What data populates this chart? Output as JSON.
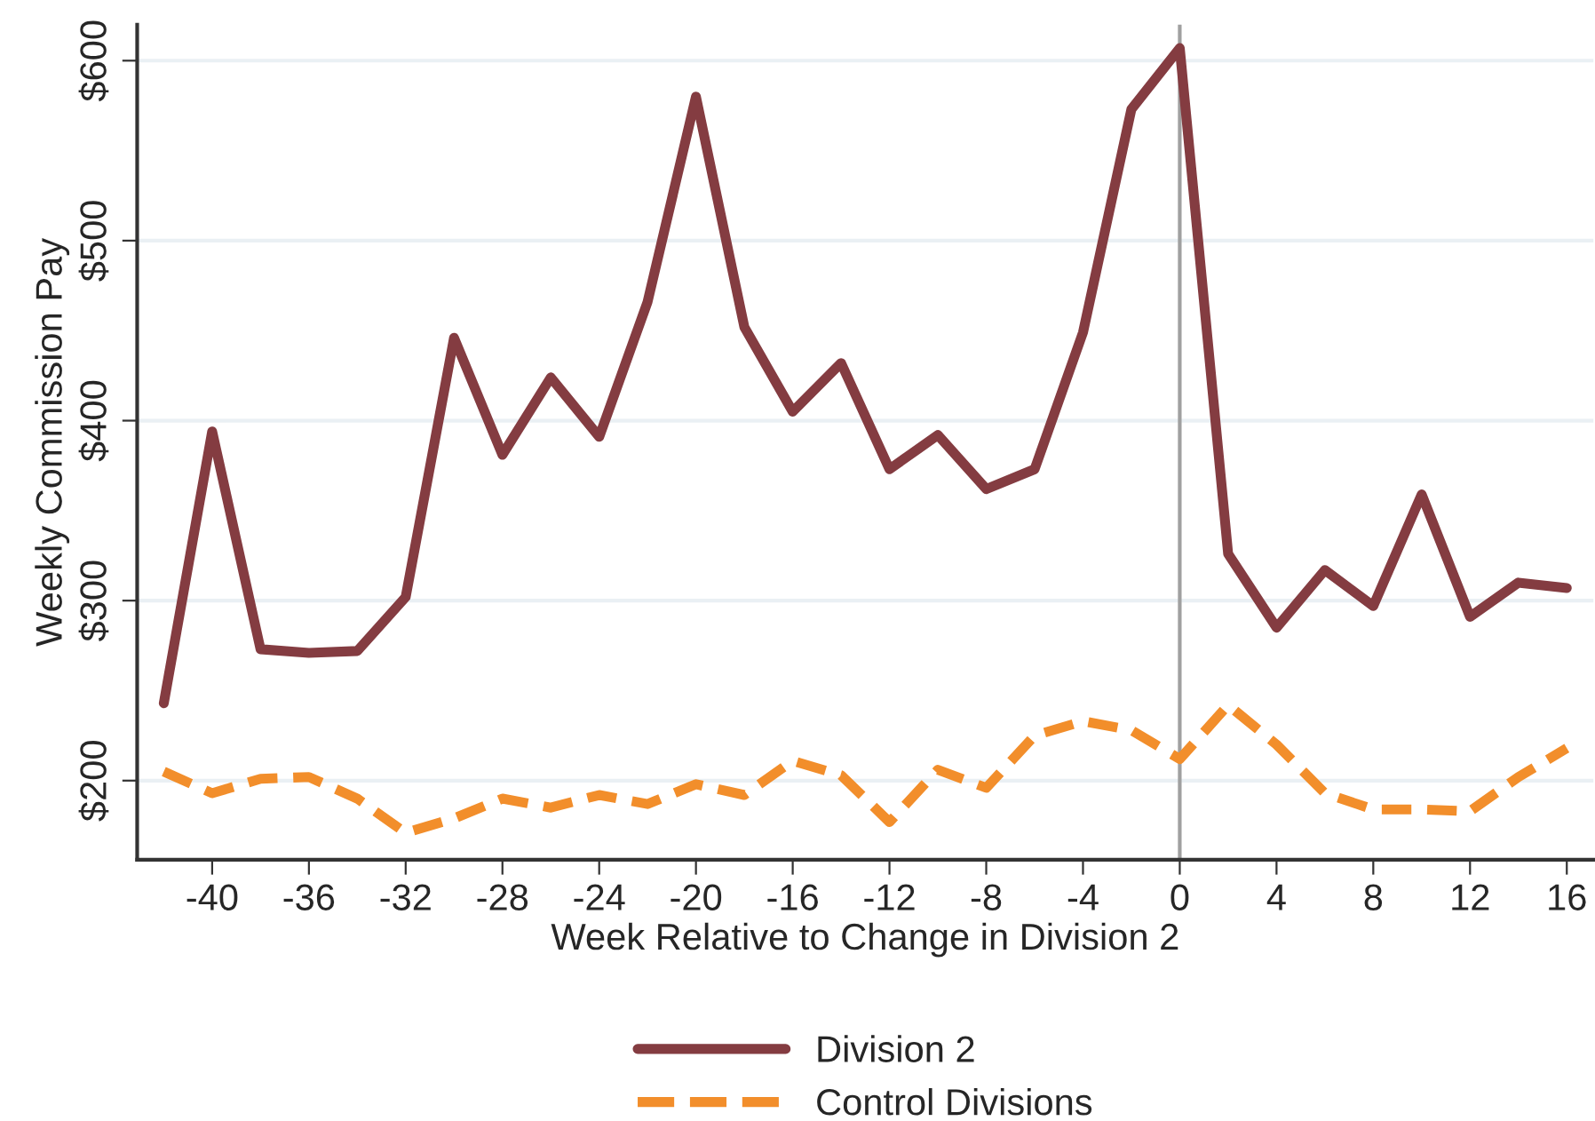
{
  "chart_data": {
    "type": "line",
    "xlabel": "Week Relative to Change in Division 2",
    "ylabel": "Weekly Commission Pay",
    "x": [
      -42,
      -40,
      -38,
      -36,
      -34,
      -32,
      -30,
      -28,
      -26,
      -24,
      -22,
      -20,
      -18,
      -16,
      -14,
      -12,
      -10,
      -8,
      -6,
      -4,
      -2,
      0,
      2,
      4,
      6,
      8,
      10,
      12,
      14,
      16
    ],
    "series": [
      {
        "name": "Division 2",
        "color": "#843c41",
        "line_style": "solid",
        "values": [
          243,
          394,
          273,
          271,
          272,
          302,
          446,
          381,
          424,
          391,
          466,
          580,
          452,
          405,
          432,
          373,
          392,
          362,
          373,
          449,
          573,
          607,
          326,
          285,
          317,
          297,
          359,
          291,
          310,
          307
        ]
      },
      {
        "name": "Control Divisions",
        "color": "#f28e2b",
        "line_style": "dashed",
        "values": [
          205,
          193,
          201,
          202,
          190,
          171,
          179,
          190,
          185,
          192,
          187,
          198,
          192,
          211,
          203,
          177,
          206,
          196,
          225,
          233,
          228,
          212,
          242,
          220,
          193,
          184,
          184,
          183,
          202,
          218
        ]
      }
    ],
    "xlim": [
      -43.1,
      17.1
    ],
    "xticks": [
      -40,
      -36,
      -32,
      -28,
      -24,
      -20,
      -16,
      -12,
      -8,
      -4,
      0,
      4,
      8,
      12,
      16
    ],
    "ylim": [
      156,
      620
    ],
    "yticks": [
      {
        "value": 200,
        "label": "$200"
      },
      {
        "value": 300,
        "label": "$300"
      },
      {
        "value": 400,
        "label": "$400"
      },
      {
        "value": 500,
        "label": "$500"
      },
      {
        "value": 600,
        "label": "$600"
      }
    ],
    "ref_lines": [
      {
        "axis": "x",
        "value": 0,
        "color": "#a0a0a0"
      }
    ],
    "grid": "y",
    "legend": "bottom"
  }
}
